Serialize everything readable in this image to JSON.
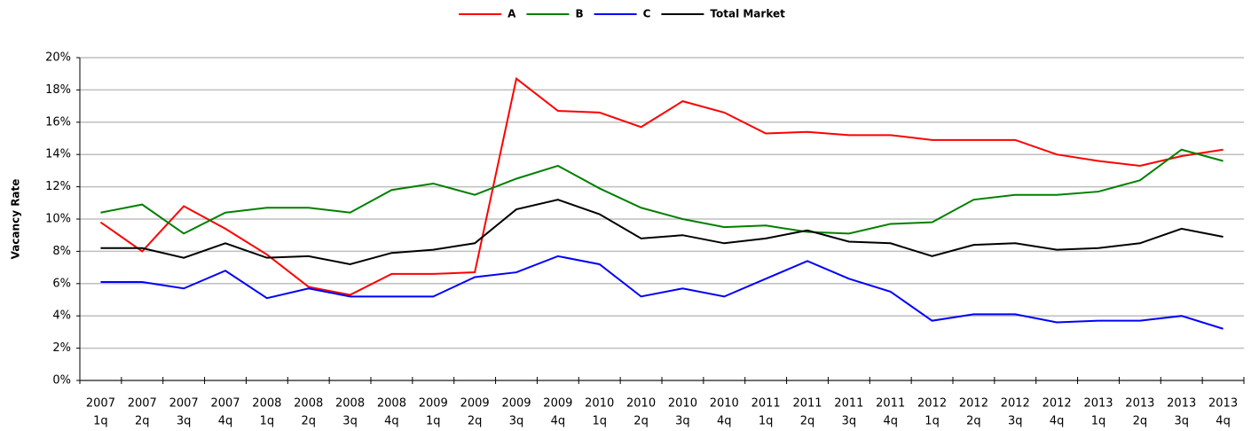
{
  "chart_data": {
    "type": "line",
    "y_label": "Vacancy Rate",
    "categories": [
      [
        "2007",
        "1q"
      ],
      [
        "2007",
        "2q"
      ],
      [
        "2007",
        "3q"
      ],
      [
        "2007",
        "4q"
      ],
      [
        "2008",
        "1q"
      ],
      [
        "2008",
        "2q"
      ],
      [
        "2008",
        "3q"
      ],
      [
        "2008",
        "4q"
      ],
      [
        "2009",
        "1q"
      ],
      [
        "2009",
        "2q"
      ],
      [
        "2009",
        "3q"
      ],
      [
        "2009",
        "4q"
      ],
      [
        "2010",
        "1q"
      ],
      [
        "2010",
        "2q"
      ],
      [
        "2010",
        "3q"
      ],
      [
        "2010",
        "4q"
      ],
      [
        "2011",
        "1q"
      ],
      [
        "2011",
        "2q"
      ],
      [
        "2011",
        "3q"
      ],
      [
        "2011",
        "4q"
      ],
      [
        "2012",
        "1q"
      ],
      [
        "2012",
        "2q"
      ],
      [
        "2012",
        "3q"
      ],
      [
        "2012",
        "4q"
      ],
      [
        "2013",
        "1q"
      ],
      [
        "2013",
        "2q"
      ],
      [
        "2013",
        "3q"
      ],
      [
        "2013",
        "4q"
      ]
    ],
    "series": [
      {
        "name": "A",
        "color": "#ff0000",
        "values": [
          9.8,
          8.0,
          10.8,
          9.4,
          7.8,
          5.8,
          5.3,
          6.6,
          6.6,
          6.7,
          18.7,
          16.7,
          16.6,
          15.7,
          17.3,
          16.6,
          15.3,
          15.4,
          15.2,
          15.2,
          14.9,
          14.9,
          14.9,
          14.0,
          13.6,
          13.3,
          13.9,
          14.3
        ]
      },
      {
        "name": "B",
        "color": "#008000",
        "values": [
          10.4,
          10.9,
          9.1,
          10.4,
          10.7,
          10.7,
          10.4,
          11.8,
          12.2,
          11.5,
          12.5,
          13.3,
          11.9,
          10.7,
          10.0,
          9.5,
          9.6,
          9.2,
          9.1,
          9.7,
          9.8,
          11.2,
          11.5,
          11.5,
          11.7,
          12.4,
          14.3,
          13.6
        ]
      },
      {
        "name": "C",
        "color": "#0000ff",
        "values": [
          6.1,
          6.1,
          5.7,
          6.8,
          5.1,
          5.7,
          5.2,
          5.2,
          5.2,
          6.4,
          6.7,
          7.7,
          7.2,
          5.2,
          5.7,
          5.2,
          6.3,
          7.4,
          6.3,
          5.5,
          3.7,
          4.1,
          4.1,
          3.6,
          3.7,
          3.7,
          4.0,
          3.2
        ]
      },
      {
        "name": "Total Market",
        "color": "#000000",
        "values": [
          8.2,
          8.2,
          7.6,
          8.5,
          7.6,
          7.7,
          7.2,
          7.9,
          8.1,
          8.5,
          10.6,
          11.2,
          10.3,
          8.8,
          9.0,
          8.5,
          8.8,
          9.3,
          8.6,
          8.5,
          7.7,
          8.4,
          8.5,
          8.1,
          8.2,
          8.5,
          9.4,
          8.9
        ]
      }
    ],
    "ylim": [
      0,
      20
    ],
    "yticks": [
      {
        "value": 0,
        "label": "0%"
      },
      {
        "value": 2,
        "label": "2%"
      },
      {
        "value": 4,
        "label": "4%"
      },
      {
        "value": 6,
        "label": "6%"
      },
      {
        "value": 8,
        "label": "8%"
      },
      {
        "value": 10,
        "label": "10%"
      },
      {
        "value": 12,
        "label": "12%"
      },
      {
        "value": 14,
        "label": "14%"
      },
      {
        "value": 16,
        "label": "16%"
      },
      {
        "value": 18,
        "label": "18%"
      },
      {
        "value": 20,
        "label": "20%"
      }
    ],
    "grid": true,
    "legend": "top"
  }
}
